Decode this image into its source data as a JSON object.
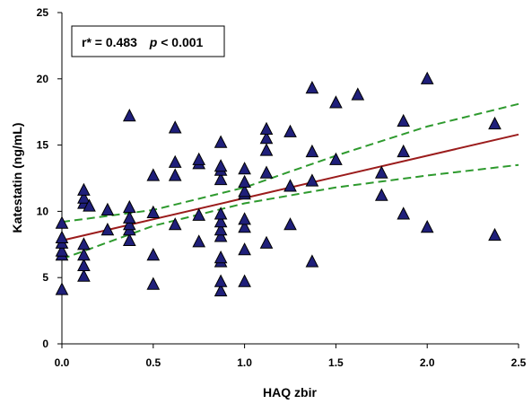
{
  "chart_data": {
    "type": "scatter",
    "title": "",
    "xlabel": "HAQ zbir",
    "ylabel": "Katestatin (ng/mL)",
    "xlim": [
      0,
      2.5
    ],
    "ylim": [
      0,
      25
    ],
    "x_ticks": [
      "0.0",
      "0.5",
      "1.0",
      "1.5",
      "2.0",
      "2.5"
    ],
    "y_ticks": [
      "0",
      "5",
      "10",
      "15",
      "20",
      "25"
    ],
    "grid": false,
    "annotation": {
      "r_text": "r* = 0.483",
      "p_symbol": "p",
      "p_text": " < 0.001"
    },
    "colors": {
      "marker_fill": "#1f1f7a",
      "marker_stroke": "#000000",
      "regression_line": "#9b1c1c",
      "confidence_band": "#2e9a2e"
    },
    "regression": {
      "intercept": 7.8,
      "slope": 3.2
    },
    "confidence_band": {
      "upper": [
        [
          0,
          9.2
        ],
        [
          0.5,
          10.1
        ],
        [
          1.0,
          11.8
        ],
        [
          1.5,
          14.2
        ],
        [
          2.0,
          16.4
        ],
        [
          2.5,
          18.1
        ]
      ],
      "lower": [
        [
          0,
          6.4
        ],
        [
          0.5,
          8.9
        ],
        [
          1.0,
          10.6
        ],
        [
          1.5,
          11.8
        ],
        [
          2.0,
          12.7
        ],
        [
          2.5,
          13.5
        ]
      ]
    },
    "points": [
      [
        0.0,
        4.1
      ],
      [
        0.0,
        6.7
      ],
      [
        0.0,
        7.0
      ],
      [
        0.0,
        7.6
      ],
      [
        0.0,
        8.0
      ],
      [
        0.0,
        9.1
      ],
      [
        0.12,
        5.1
      ],
      [
        0.12,
        5.9
      ],
      [
        0.12,
        6.7
      ],
      [
        0.12,
        7.5
      ],
      [
        0.12,
        10.6
      ],
      [
        0.12,
        11.0
      ],
      [
        0.12,
        11.6
      ],
      [
        0.15,
        10.4
      ],
      [
        0.25,
        8.6
      ],
      [
        0.25,
        10.1
      ],
      [
        0.37,
        7.8
      ],
      [
        0.37,
        8.6
      ],
      [
        0.37,
        9.0
      ],
      [
        0.37,
        9.5
      ],
      [
        0.37,
        10.3
      ],
      [
        0.37,
        17.2
      ],
      [
        0.5,
        4.5
      ],
      [
        0.5,
        6.7
      ],
      [
        0.5,
        9.9
      ],
      [
        0.5,
        12.7
      ],
      [
        0.62,
        9.0
      ],
      [
        0.62,
        12.7
      ],
      [
        0.62,
        13.7
      ],
      [
        0.62,
        16.3
      ],
      [
        0.75,
        7.7
      ],
      [
        0.75,
        9.7
      ],
      [
        0.75,
        13.6
      ],
      [
        0.75,
        13.9
      ],
      [
        0.87,
        4.0
      ],
      [
        0.87,
        4.7
      ],
      [
        0.87,
        6.2
      ],
      [
        0.87,
        6.5
      ],
      [
        0.87,
        8.1
      ],
      [
        0.87,
        8.6
      ],
      [
        0.87,
        9.2
      ],
      [
        0.87,
        9.8
      ],
      [
        0.87,
        12.4
      ],
      [
        0.87,
        13.1
      ],
      [
        0.87,
        13.4
      ],
      [
        0.87,
        15.2
      ],
      [
        1.0,
        4.7
      ],
      [
        1.0,
        7.1
      ],
      [
        1.0,
        8.8
      ],
      [
        1.0,
        9.4
      ],
      [
        1.0,
        11.3
      ],
      [
        1.0,
        11.5
      ],
      [
        1.0,
        12.2
      ],
      [
        1.0,
        13.2
      ],
      [
        1.12,
        7.6
      ],
      [
        1.12,
        12.9
      ],
      [
        1.12,
        14.6
      ],
      [
        1.12,
        15.5
      ],
      [
        1.12,
        16.2
      ],
      [
        1.25,
        9.0
      ],
      [
        1.25,
        11.9
      ],
      [
        1.25,
        16.0
      ],
      [
        1.37,
        6.2
      ],
      [
        1.37,
        12.3
      ],
      [
        1.37,
        14.5
      ],
      [
        1.37,
        19.3
      ],
      [
        1.5,
        13.9
      ],
      [
        1.5,
        18.2
      ],
      [
        1.62,
        18.8
      ],
      [
        1.75,
        11.2
      ],
      [
        1.75,
        12.9
      ],
      [
        1.87,
        9.8
      ],
      [
        1.87,
        14.5
      ],
      [
        1.87,
        16.8
      ],
      [
        2.0,
        8.8
      ],
      [
        2.0,
        20.0
      ],
      [
        2.37,
        8.2
      ],
      [
        2.37,
        16.6
      ]
    ]
  }
}
